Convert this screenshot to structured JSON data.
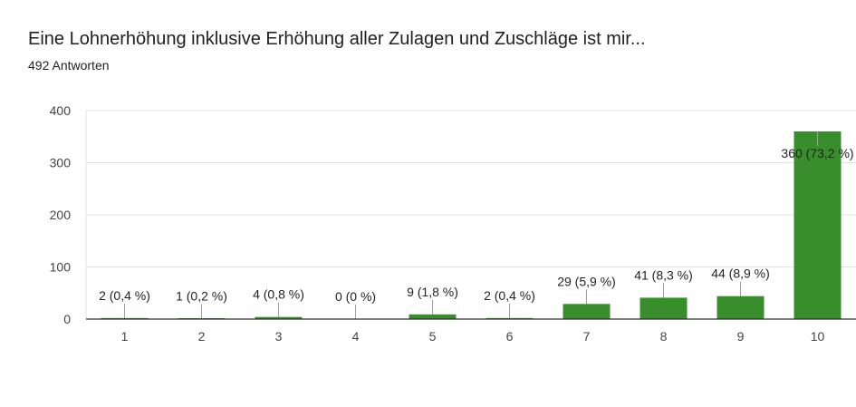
{
  "title": "Eine Lohnerhöhung inklusive Erhöhung aller Zulagen und Zuschläge ist mir...",
  "subtitle": "492 Antworten",
  "colors": {
    "bar": "#388e2b",
    "grid": "#e0e0e0",
    "axis": "#333333",
    "leader": "#9e9e9e"
  },
  "chart_data": {
    "type": "bar",
    "categories": [
      "1",
      "2",
      "3",
      "4",
      "5",
      "6",
      "7",
      "8",
      "9",
      "10"
    ],
    "values": [
      2,
      1,
      4,
      0,
      9,
      2,
      29,
      41,
      44,
      360
    ],
    "data_labels": [
      "2 (0,4 %)",
      "1 (0,2 %)",
      "4 (0,8 %)",
      "0 (0 %)",
      "9 (1,8 %)",
      "2 (0,4 %)",
      "29 (5,9 %)",
      "41 (8,3 %)",
      "44 (8,9 %)",
      "360 (73,2 %)"
    ],
    "yticks": [
      0,
      100,
      200,
      300,
      400
    ],
    "ylim": [
      0,
      400
    ],
    "grid": true,
    "legend": false
  }
}
